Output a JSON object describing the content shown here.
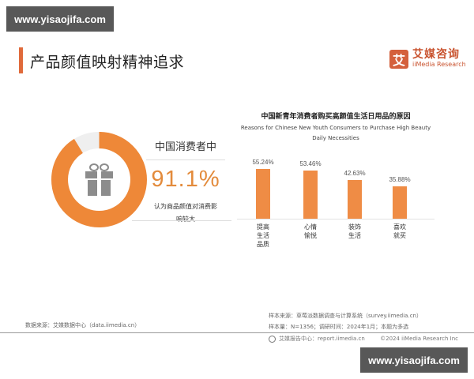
{
  "watermark": {
    "text": "www.yisaojifa.com"
  },
  "header": {
    "title": "产品颜值映射精神追求"
  },
  "logo": {
    "mark": "艾",
    "cn": "艾媒咨询",
    "en": "iiMedia Research"
  },
  "donut": {
    "label": "中国消费者中",
    "value": "91.1%",
    "description_line1": "认为商品颜值对消费影",
    "description_line2": "响较大",
    "percent": 91.1,
    "color": "#ee8838",
    "icon": "gift-icon"
  },
  "chart_data": {
    "type": "bar",
    "title": "中国新青年消费者购买高颜值生活日用品的原因",
    "subtitle": "Reasons for Chinese New Youth Consumers to Purchase High Beauty Daily Necessities",
    "subtitle_line1": "Reasons for Chinese New Youth Consumers to Purchase High Beauty",
    "subtitle_line2": "Daily Necessities",
    "categories": [
      "提高生活品质",
      "心情愉悦",
      "装饰生活",
      "喜欢就买"
    ],
    "category_lines": [
      [
        "提高",
        "生活",
        "品质"
      ],
      [
        "心情",
        "愉悦"
      ],
      [
        "装饰",
        "生活"
      ],
      [
        "喜欢",
        "就买"
      ]
    ],
    "values": [
      55.24,
      53.46,
      42.63,
      35.88
    ],
    "value_labels": [
      "55.24%",
      "53.46%",
      "42.63%",
      "35.88%"
    ],
    "xlabel": "",
    "ylabel": "",
    "ylim": [
      0,
      60
    ],
    "grid": false,
    "bar_color": "#ef8c45"
  },
  "sources": {
    "left": "数据来源：艾媒数据中心（data.iimedia.cn）",
    "right_line1": "样本来源：草莓派数据调查与计算系统（survey.iimedia.cn）",
    "right_line2": "样本量：N=1356；调研时间：2024年1月；本题为多选"
  },
  "footer": {
    "report": "艾媒报告中心：report.iimedia.cn",
    "copyright": "©2024 iiMedia Research Inc"
  }
}
